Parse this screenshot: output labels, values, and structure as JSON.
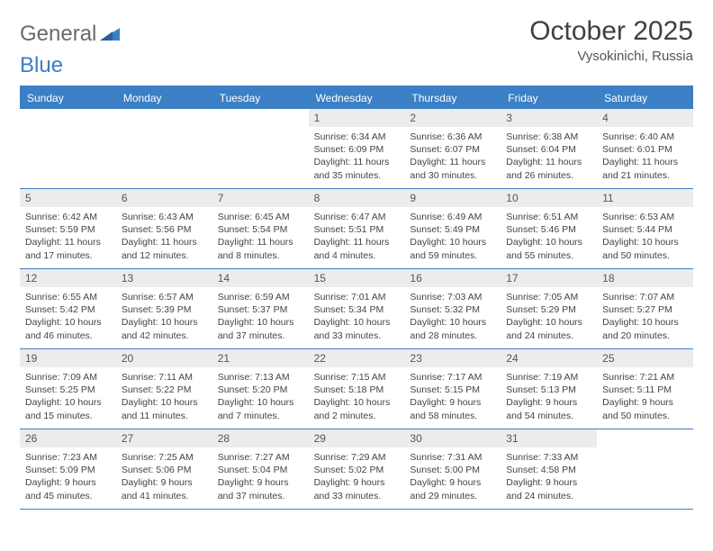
{
  "logo": {
    "text1": "General",
    "text2": "Blue"
  },
  "title": "October 2025",
  "location": "Vysokinichi, Russia",
  "colors": {
    "header_bg": "#3b7fc4",
    "header_text": "#ffffff",
    "daynum_bg": "#ececec",
    "page_bg": "#ffffff",
    "body_text": "#444444",
    "title_text": "#404040"
  },
  "weekdays": [
    "Sunday",
    "Monday",
    "Tuesday",
    "Wednesday",
    "Thursday",
    "Friday",
    "Saturday"
  ],
  "weeks": [
    [
      {
        "n": "",
        "sr": "",
        "ss": "",
        "dl": ""
      },
      {
        "n": "",
        "sr": "",
        "ss": "",
        "dl": ""
      },
      {
        "n": "",
        "sr": "",
        "ss": "",
        "dl": ""
      },
      {
        "n": "1",
        "sr": "Sunrise: 6:34 AM",
        "ss": "Sunset: 6:09 PM",
        "dl": "Daylight: 11 hours and 35 minutes."
      },
      {
        "n": "2",
        "sr": "Sunrise: 6:36 AM",
        "ss": "Sunset: 6:07 PM",
        "dl": "Daylight: 11 hours and 30 minutes."
      },
      {
        "n": "3",
        "sr": "Sunrise: 6:38 AM",
        "ss": "Sunset: 6:04 PM",
        "dl": "Daylight: 11 hours and 26 minutes."
      },
      {
        "n": "4",
        "sr": "Sunrise: 6:40 AM",
        "ss": "Sunset: 6:01 PM",
        "dl": "Daylight: 11 hours and 21 minutes."
      }
    ],
    [
      {
        "n": "5",
        "sr": "Sunrise: 6:42 AM",
        "ss": "Sunset: 5:59 PM",
        "dl": "Daylight: 11 hours and 17 minutes."
      },
      {
        "n": "6",
        "sr": "Sunrise: 6:43 AM",
        "ss": "Sunset: 5:56 PM",
        "dl": "Daylight: 11 hours and 12 minutes."
      },
      {
        "n": "7",
        "sr": "Sunrise: 6:45 AM",
        "ss": "Sunset: 5:54 PM",
        "dl": "Daylight: 11 hours and 8 minutes."
      },
      {
        "n": "8",
        "sr": "Sunrise: 6:47 AM",
        "ss": "Sunset: 5:51 PM",
        "dl": "Daylight: 11 hours and 4 minutes."
      },
      {
        "n": "9",
        "sr": "Sunrise: 6:49 AM",
        "ss": "Sunset: 5:49 PM",
        "dl": "Daylight: 10 hours and 59 minutes."
      },
      {
        "n": "10",
        "sr": "Sunrise: 6:51 AM",
        "ss": "Sunset: 5:46 PM",
        "dl": "Daylight: 10 hours and 55 minutes."
      },
      {
        "n": "11",
        "sr": "Sunrise: 6:53 AM",
        "ss": "Sunset: 5:44 PM",
        "dl": "Daylight: 10 hours and 50 minutes."
      }
    ],
    [
      {
        "n": "12",
        "sr": "Sunrise: 6:55 AM",
        "ss": "Sunset: 5:42 PM",
        "dl": "Daylight: 10 hours and 46 minutes."
      },
      {
        "n": "13",
        "sr": "Sunrise: 6:57 AM",
        "ss": "Sunset: 5:39 PM",
        "dl": "Daylight: 10 hours and 42 minutes."
      },
      {
        "n": "14",
        "sr": "Sunrise: 6:59 AM",
        "ss": "Sunset: 5:37 PM",
        "dl": "Daylight: 10 hours and 37 minutes."
      },
      {
        "n": "15",
        "sr": "Sunrise: 7:01 AM",
        "ss": "Sunset: 5:34 PM",
        "dl": "Daylight: 10 hours and 33 minutes."
      },
      {
        "n": "16",
        "sr": "Sunrise: 7:03 AM",
        "ss": "Sunset: 5:32 PM",
        "dl": "Daylight: 10 hours and 28 minutes."
      },
      {
        "n": "17",
        "sr": "Sunrise: 7:05 AM",
        "ss": "Sunset: 5:29 PM",
        "dl": "Daylight: 10 hours and 24 minutes."
      },
      {
        "n": "18",
        "sr": "Sunrise: 7:07 AM",
        "ss": "Sunset: 5:27 PM",
        "dl": "Daylight: 10 hours and 20 minutes."
      }
    ],
    [
      {
        "n": "19",
        "sr": "Sunrise: 7:09 AM",
        "ss": "Sunset: 5:25 PM",
        "dl": "Daylight: 10 hours and 15 minutes."
      },
      {
        "n": "20",
        "sr": "Sunrise: 7:11 AM",
        "ss": "Sunset: 5:22 PM",
        "dl": "Daylight: 10 hours and 11 minutes."
      },
      {
        "n": "21",
        "sr": "Sunrise: 7:13 AM",
        "ss": "Sunset: 5:20 PM",
        "dl": "Daylight: 10 hours and 7 minutes."
      },
      {
        "n": "22",
        "sr": "Sunrise: 7:15 AM",
        "ss": "Sunset: 5:18 PM",
        "dl": "Daylight: 10 hours and 2 minutes."
      },
      {
        "n": "23",
        "sr": "Sunrise: 7:17 AM",
        "ss": "Sunset: 5:15 PM",
        "dl": "Daylight: 9 hours and 58 minutes."
      },
      {
        "n": "24",
        "sr": "Sunrise: 7:19 AM",
        "ss": "Sunset: 5:13 PM",
        "dl": "Daylight: 9 hours and 54 minutes."
      },
      {
        "n": "25",
        "sr": "Sunrise: 7:21 AM",
        "ss": "Sunset: 5:11 PM",
        "dl": "Daylight: 9 hours and 50 minutes."
      }
    ],
    [
      {
        "n": "26",
        "sr": "Sunrise: 7:23 AM",
        "ss": "Sunset: 5:09 PM",
        "dl": "Daylight: 9 hours and 45 minutes."
      },
      {
        "n": "27",
        "sr": "Sunrise: 7:25 AM",
        "ss": "Sunset: 5:06 PM",
        "dl": "Daylight: 9 hours and 41 minutes."
      },
      {
        "n": "28",
        "sr": "Sunrise: 7:27 AM",
        "ss": "Sunset: 5:04 PM",
        "dl": "Daylight: 9 hours and 37 minutes."
      },
      {
        "n": "29",
        "sr": "Sunrise: 7:29 AM",
        "ss": "Sunset: 5:02 PM",
        "dl": "Daylight: 9 hours and 33 minutes."
      },
      {
        "n": "30",
        "sr": "Sunrise: 7:31 AM",
        "ss": "Sunset: 5:00 PM",
        "dl": "Daylight: 9 hours and 29 minutes."
      },
      {
        "n": "31",
        "sr": "Sunrise: 7:33 AM",
        "ss": "Sunset: 4:58 PM",
        "dl": "Daylight: 9 hours and 24 minutes."
      },
      {
        "n": "",
        "sr": "",
        "ss": "",
        "dl": ""
      }
    ]
  ]
}
